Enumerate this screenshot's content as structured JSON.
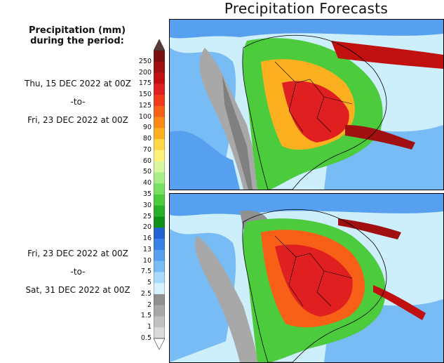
{
  "title": "Precipitation Forecasts",
  "legend_heading_line1": "Precipitation (mm)",
  "legend_heading_line2": "during the period:",
  "periods": [
    {
      "start": "Thu, 15 DEC 2022 at 00Z",
      "sep": "-to-",
      "end": "Fri, 23 DEC 2022 at 00Z"
    },
    {
      "start": "Fri, 23 DEC 2022 at 00Z",
      "sep": "-to-",
      "end": "Sat, 31 DEC 2022 at 00Z"
    }
  ],
  "colorbar": {
    "levels": [
      "250",
      "200",
      "175",
      "150",
      "125",
      "100",
      "90",
      "80",
      "70",
      "60",
      "50",
      "40",
      "35",
      "30",
      "25",
      "20",
      "16",
      "13",
      "10",
      "7.5",
      "5",
      "2.5",
      "2",
      "1.5",
      "1",
      "0.5"
    ],
    "top_arrow_color": "#5a3a36",
    "colors": [
      "#7a1010",
      "#a01010",
      "#c01010",
      "#e02020",
      "#f03a1a",
      "#f86018",
      "#fa8a18",
      "#fcb020",
      "#fed84a",
      "#fff27a",
      "#d8f5a0",
      "#a8ee88",
      "#78e060",
      "#4ccc3c",
      "#28b028",
      "#109018",
      "#2262d2",
      "#3882e6",
      "#56a0ef",
      "#78bcf6",
      "#a8dbfb",
      "#d6f2fe",
      "#909090",
      "#a8a8a8",
      "#c0c0c0",
      "#dadada"
    ],
    "bottom_arrow_color": "#ffffff"
  }
}
